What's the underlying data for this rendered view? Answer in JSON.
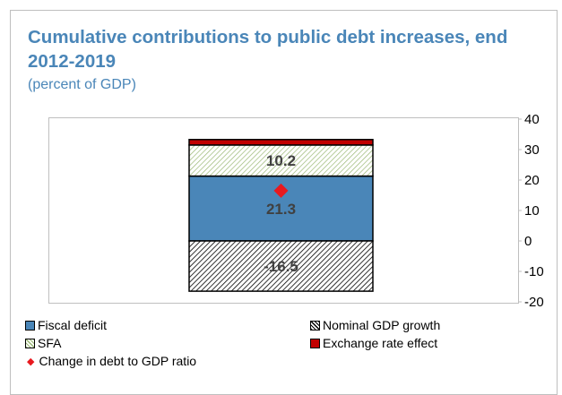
{
  "chart_data": {
    "type": "bar",
    "stacked": true,
    "title": "Cumulative contributions to public debt increases, end 2012-2019",
    "subtitle": "(percent of GDP)",
    "yaxis_position": "right",
    "ylim": [
      -20,
      40
    ],
    "yticks": [
      "40",
      "30",
      "20",
      "10",
      "0",
      "-10",
      "-20"
    ],
    "ytick_values": [
      40,
      30,
      20,
      10,
      0,
      -10,
      -20
    ],
    "series": [
      {
        "name": "Fiscal deficit",
        "value": 21.3,
        "label": "21.3",
        "color": "#4a86b8",
        "pattern": "solid"
      },
      {
        "name": "SFA",
        "value": 10.2,
        "label": "10.2",
        "color": "#9ab874",
        "pattern": "diagonal-hatch"
      },
      {
        "name": "Exchange rate effect",
        "value": 1.8,
        "label": "",
        "color": "#c00000",
        "pattern": "solid"
      },
      {
        "name": "Nominal GDP growth",
        "value": -16.5,
        "label": "-16.5",
        "color": "#000000",
        "pattern": "diagonal-hatch"
      }
    ],
    "marker": {
      "name": "Change in debt to GDP ratio",
      "value": 16.5,
      "color": "#e8191f",
      "shape": "diamond"
    },
    "legend": {
      "position": "bottom",
      "items": [
        "Fiscal deficit",
        "Nominal GDP growth",
        "SFA",
        "Exchange rate effect",
        "Change in debt to GDP ratio"
      ]
    },
    "grid": false
  }
}
